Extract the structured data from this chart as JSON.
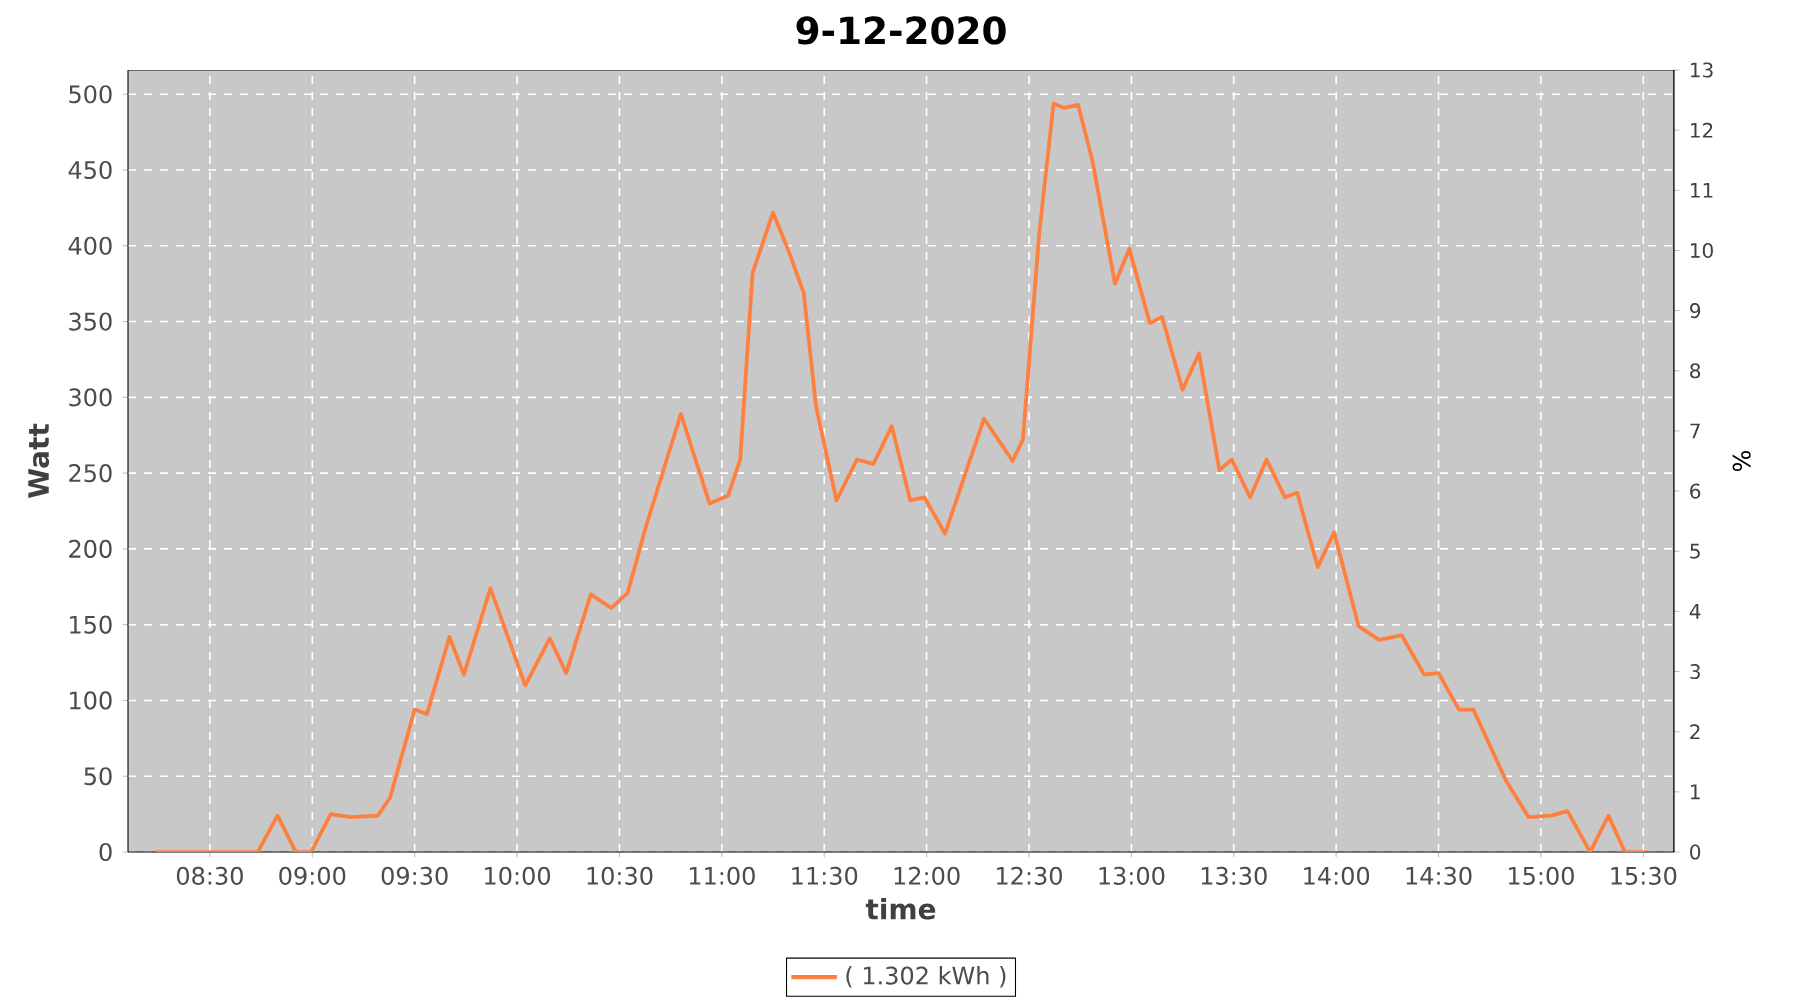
{
  "chart_data": {
    "type": "line",
    "title": "9-12-2020",
    "xlabel": "time",
    "ylabel": "Watt",
    "y2label": "%",
    "x": [
      8.237,
      8.62,
      8.67,
      8.734,
      8.83,
      8.92,
      8.994,
      9.09,
      9.19,
      9.32,
      9.38,
      9.5,
      9.56,
      9.67,
      9.74,
      9.87,
      10.04,
      10.16,
      10.24,
      10.36,
      10.46,
      10.54,
      10.63,
      10.8,
      10.94,
      11.03,
      11.09,
      11.15,
      11.25,
      11.33,
      11.4,
      11.46,
      11.56,
      11.66,
      11.74,
      11.83,
      11.92,
      11.99,
      12.09,
      12.28,
      12.42,
      12.47,
      12.55,
      12.62,
      12.67,
      12.74,
      12.81,
      12.92,
      12.99,
      13.09,
      13.15,
      13.25,
      13.33,
      13.43,
      13.49,
      13.58,
      13.66,
      13.75,
      13.81,
      13.91,
      13.99,
      14.11,
      14.21,
      14.32,
      14.43,
      14.5,
      14.6,
      14.67,
      14.83,
      14.94,
      15.05,
      15.13,
      15.24,
      15.33,
      15.41,
      15.51
    ],
    "series": [
      {
        "name": "( 1.302 kWh )",
        "color": "#ff7f3f",
        "values": [
          0,
          0,
          0,
          0,
          24,
          0,
          0,
          25,
          23,
          24,
          36,
          94,
          91,
          142,
          117,
          174,
          110,
          141,
          118,
          170,
          161,
          171,
          215,
          289,
          230,
          235,
          259,
          382,
          422,
          395,
          369,
          294,
          232,
          259,
          256,
          281,
          232,
          234,
          210,
          286,
          258,
          272,
          408,
          494,
          491,
          493,
          456,
          375,
          398,
          349,
          353,
          305,
          329,
          252,
          259,
          234,
          259,
          234,
          237,
          188,
          211,
          149,
          140,
          143,
          117,
          118,
          94,
          94,
          47,
          23,
          24,
          27,
          0,
          24,
          0,
          0
        ]
      }
    ],
    "xlim": [
      8.1,
      15.65
    ],
    "xticks": [
      {
        "value": 8.5,
        "label": "08:30"
      },
      {
        "value": 9,
        "label": "09:00"
      },
      {
        "value": 9.5,
        "label": "09:30"
      },
      {
        "value": 10,
        "label": "10:00"
      },
      {
        "value": 10.5,
        "label": "10:30"
      },
      {
        "value": 11,
        "label": "11:00"
      },
      {
        "value": 11.5,
        "label": "11:30"
      },
      {
        "value": 12,
        "label": "12:00"
      },
      {
        "value": 12.5,
        "label": "12:30"
      },
      {
        "value": 13,
        "label": "13:00"
      },
      {
        "value": 13.5,
        "label": "13:30"
      },
      {
        "value": 14,
        "label": "14:00"
      },
      {
        "value": 14.5,
        "label": "14:30"
      },
      {
        "value": 15,
        "label": "15:00"
      },
      {
        "value": 15.5,
        "label": "15:30"
      }
    ],
    "ylim": [
      0,
      516
    ],
    "yticks": [
      0,
      50,
      100,
      150,
      200,
      250,
      300,
      350,
      400,
      450,
      500
    ],
    "y2lim": [
      0,
      13
    ],
    "y2ticks": [
      0,
      1,
      2,
      3,
      4,
      5,
      6,
      7,
      8,
      9,
      10,
      11,
      12,
      13
    ],
    "grid": true,
    "legend": "bottom",
    "marker": "none",
    "line_style": "solid"
  }
}
